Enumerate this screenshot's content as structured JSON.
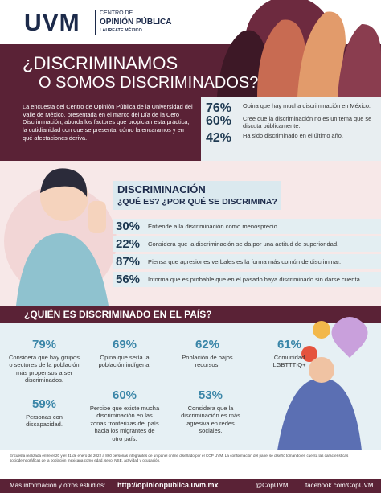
{
  "header": {
    "logo": "UVM",
    "org_line1": "CENTRO DE",
    "org_line2": "OPINIÓN PÚBLICA",
    "org_line3": "LAUREATE MÉXICO"
  },
  "title": {
    "line1": "¿DISCRIMINAMOS",
    "line2": "O SOMOS DISCRIMINADOS?"
  },
  "intro": {
    "text": "La encuesta del Centro de Opinión Pública de la Universidad del Valle de México, presentada en el marco del Día de la Cero Discriminación, aborda los factores que propician esta práctica, la cotidianidad con que se presenta, cómo la encaramos y en qué afectaciones deriva.",
    "stats": [
      {
        "value": "76%",
        "text": "Opina que hay mucha discriminación en México."
      },
      {
        "value": "60%",
        "text": "Cree que la discriminación no es un tema que se discuta públicamente."
      },
      {
        "value": "42%",
        "text": "Ha sido discriminado en el último año."
      }
    ]
  },
  "definition": {
    "heading": "DISCRIMINACIÓN",
    "subheading": "¿QUÉ ES? ¿POR QUÉ SE DISCRIMINA?",
    "stats": [
      {
        "value": "30%",
        "text": "Entiende a la discriminación como menosprecio."
      },
      {
        "value": "22%",
        "text": "Considera que la discriminación se da por una actitud de superioridad."
      },
      {
        "value": "87%",
        "text": "Piensa que agresiones verbales es la forma más común de discriminar."
      },
      {
        "value": "56%",
        "text": "Informa que es probable que en el pasado haya discriminado sin darse cuenta."
      }
    ]
  },
  "who": {
    "heading": "¿QUIÉN ES DISCRIMINADO EN EL PAÍS?",
    "stats": [
      {
        "value": "79%",
        "text": "Considera que hay grupos o sectores de la población más propensos a ser discriminados."
      },
      {
        "value": "69%",
        "text": "Opina que sería la población indígena."
      },
      {
        "value": "62%",
        "text": "Población de bajos recursos."
      },
      {
        "value": "61%",
        "text": "Comunidad LGBTTTIQ+"
      },
      {
        "value": "59%",
        "text": "Personas con discapacidad."
      },
      {
        "value": "60%",
        "text": "Percibe que existe mucha discriminación en las zonas fronterizas del país hacia los migrantes de otro país."
      },
      {
        "value": "53%",
        "text": "Considera que la discriminación es más agresiva en redes sociales."
      }
    ]
  },
  "footnote": "Encuesta realizada entre el 20 y el 31 de enero de 2022 a 860 personas integrantes de un panel online diseñado por el COP UVM. La conformación del panel se diseñó tomando en cuenta las características sociodemográficas de la población mexicana como edad, sexo, NSE, actividad y ocupación.",
  "footer": {
    "label": "Más información y otros estudios:",
    "url": "http://opinionpublica.uvm.mx",
    "twitter": "@CopUVM",
    "facebook": "facebook.com/CopUVM"
  }
}
